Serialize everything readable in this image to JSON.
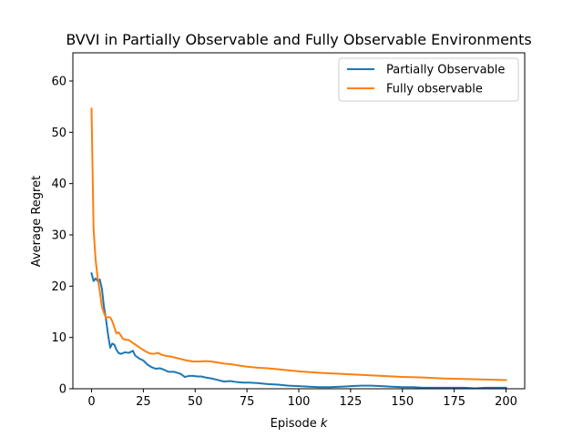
{
  "chart_data": {
    "type": "line",
    "title": "BVVI in Partially Observable and Fully Observable Environments",
    "xlabel_prefix": "Episode ",
    "xlabel_var": "k",
    "ylabel": "Average Regret",
    "xlim": [
      -9,
      209
    ],
    "ylim": [
      0,
      65.5
    ],
    "xticks": [
      0,
      25,
      50,
      75,
      100,
      125,
      150,
      175,
      200
    ],
    "yticks": [
      0,
      10,
      20,
      30,
      40,
      50,
      60
    ],
    "grid": false,
    "legend_position": "top-right",
    "series": [
      {
        "name": "Partially Observable",
        "color": "#1f77b4",
        "x": [
          0,
          1,
          2,
          3,
          4,
          5,
          6,
          7,
          8,
          9,
          10,
          11,
          12,
          13,
          14,
          15,
          16,
          18,
          20,
          21,
          23,
          25,
          27,
          29,
          31,
          33,
          35,
          37,
          40,
          43,
          45,
          47,
          49,
          51,
          53,
          55,
          58,
          61,
          64,
          67,
          70,
          73,
          76,
          80,
          85,
          90,
          95,
          100,
          105,
          110,
          115,
          120,
          125,
          130,
          135,
          140,
          145,
          150,
          155,
          160,
          165,
          170,
          175,
          180,
          185,
          190,
          195,
          200
        ],
        "y": [
          22.5,
          21.0,
          21.5,
          21.0,
          21.3,
          19.5,
          16.0,
          13.5,
          10.5,
          8.0,
          8.8,
          8.6,
          7.6,
          7.0,
          6.8,
          6.9,
          7.1,
          7.0,
          7.4,
          6.5,
          5.9,
          5.5,
          4.7,
          4.2,
          3.9,
          4.0,
          3.7,
          3.3,
          3.3,
          2.9,
          2.3,
          2.5,
          2.5,
          2.4,
          2.4,
          2.2,
          2.0,
          1.7,
          1.4,
          1.5,
          1.3,
          1.2,
          1.2,
          1.1,
          0.9,
          0.8,
          0.6,
          0.5,
          0.4,
          0.3,
          0.3,
          0.4,
          0.5,
          0.6,
          0.6,
          0.5,
          0.4,
          0.3,
          0.3,
          0.2,
          0.2,
          0.2,
          0.2,
          0.2,
          0.1,
          0.2,
          0.2,
          0.2
        ]
      },
      {
        "name": "Fully observable",
        "color": "#ff7f0e",
        "x": [
          0,
          1,
          2,
          3,
          4,
          5,
          6,
          7,
          8,
          9,
          10,
          11,
          12,
          13,
          14,
          15,
          16,
          18,
          20,
          22,
          24,
          26,
          28,
          30,
          32,
          34,
          36,
          38,
          40,
          43,
          46,
          49,
          52,
          55,
          58,
          61,
          64,
          67,
          70,
          75,
          80,
          85,
          90,
          95,
          100,
          110,
          120,
          130,
          140,
          150,
          160,
          170,
          180,
          190,
          200
        ],
        "y": [
          54.6,
          31.0,
          25.0,
          21.5,
          19.0,
          16.0,
          14.8,
          13.8,
          14.0,
          13.9,
          13.2,
          12.0,
          10.8,
          11.0,
          10.5,
          9.8,
          9.6,
          9.5,
          8.9,
          8.4,
          7.8,
          7.3,
          6.9,
          6.8,
          7.0,
          6.6,
          6.4,
          6.3,
          6.1,
          5.8,
          5.5,
          5.3,
          5.3,
          5.4,
          5.3,
          5.1,
          4.9,
          4.8,
          4.6,
          4.3,
          4.1,
          4.0,
          3.8,
          3.6,
          3.4,
          3.1,
          2.9,
          2.7,
          2.5,
          2.3,
          2.2,
          2.0,
          1.9,
          1.8,
          1.7
        ]
      }
    ]
  }
}
